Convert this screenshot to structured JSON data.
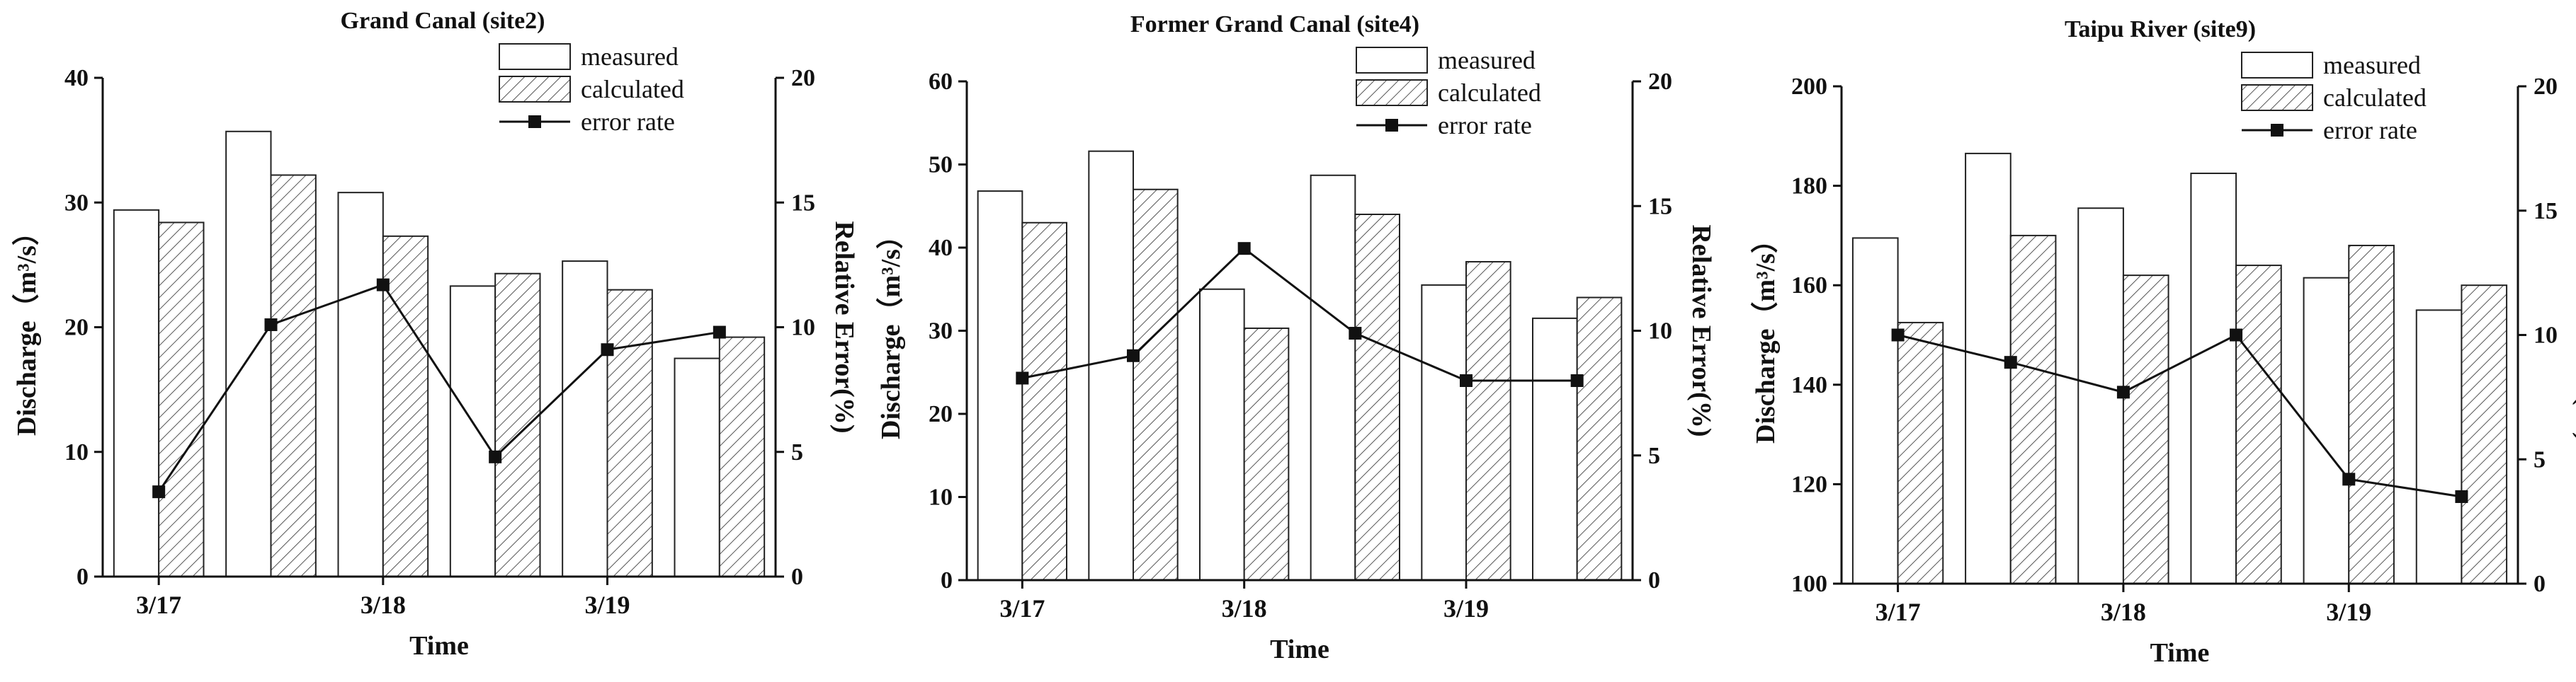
{
  "chart_data": [
    {
      "type": "bar",
      "title": "Grand Canal (site2)",
      "xlabel": "Time",
      "ylabel": "Discharge（m³/s）",
      "y2label": "Relative Error(%)",
      "ylim": [
        0,
        40
      ],
      "y2lim": [
        0,
        20
      ],
      "yticks": [
        "0",
        "10",
        "20",
        "30",
        "40"
      ],
      "y2ticks": [
        "0",
        "5",
        "10",
        "15",
        "20"
      ],
      "xticks": [
        "3/17",
        "3/18",
        "3/19"
      ],
      "legend": {
        "position": "top-right",
        "entries": [
          "measured",
          "calculated",
          "error rate"
        ]
      },
      "categories": [
        "1",
        "2",
        "3",
        "4",
        "5",
        "6"
      ],
      "series": [
        {
          "name": "measured",
          "values": [
            29.4,
            35.7,
            30.8,
            23.3,
            25.3,
            17.5
          ]
        },
        {
          "name": "calculated",
          "values": [
            28.4,
            32.2,
            27.3,
            24.3,
            23.0,
            19.2
          ]
        },
        {
          "name": "error rate",
          "values": [
            3.4,
            10.1,
            11.7,
            4.8,
            9.1,
            9.8
          ]
        }
      ]
    },
    {
      "type": "bar",
      "title": "Former Grand Canal (site4)",
      "xlabel": "Time",
      "ylabel": "Discharge（m³/s）",
      "y2label": "Relative Error(%)",
      "ylim": [
        0,
        60
      ],
      "y2lim": [
        0,
        20
      ],
      "yticks": [
        "0",
        "10",
        "20",
        "30",
        "40",
        "50",
        "60"
      ],
      "y2ticks": [
        "0",
        "5",
        "10",
        "15",
        "20"
      ],
      "xticks": [
        "3/17",
        "3/18",
        "3/19"
      ],
      "legend": {
        "position": "top-right",
        "entries": [
          "measured",
          "calculated",
          "error rate"
        ]
      },
      "categories": [
        "1",
        "2",
        "3",
        "4",
        "5",
        "6"
      ],
      "series": [
        {
          "name": "measured",
          "values": [
            46.8,
            51.6,
            35.0,
            48.7,
            35.5,
            31.5
          ]
        },
        {
          "name": "calculated",
          "values": [
            43.0,
            47.0,
            30.3,
            44.0,
            38.3,
            34.0
          ]
        },
        {
          "name": "error rate",
          "values": [
            8.1,
            9.0,
            13.3,
            9.9,
            8.0,
            8.0
          ]
        }
      ]
    },
    {
      "type": "bar",
      "title": "Taipu River (site9)",
      "xlabel": "Time",
      "ylabel": "Discharge（m³/s）",
      "y2label": "Relative Error(%)",
      "ylim": [
        100,
        200
      ],
      "y2lim": [
        0,
        20
      ],
      "yticks": [
        "100",
        "120",
        "140",
        "160",
        "180",
        "200"
      ],
      "y2ticks": [
        "0",
        "5",
        "10",
        "15",
        "20"
      ],
      "xticks": [
        "3/17",
        "3/18",
        "3/19"
      ],
      "legend": {
        "position": "top-right",
        "entries": [
          "measured",
          "calculated",
          "error rate"
        ]
      },
      "categories": [
        "1",
        "2",
        "3",
        "4",
        "5",
        "6"
      ],
      "series": [
        {
          "name": "measured",
          "values": [
            169.5,
            186.5,
            175.5,
            182.5,
            161.5,
            155.0
          ]
        },
        {
          "name": "calculated",
          "values": [
            152.5,
            170.0,
            162.0,
            164.0,
            168.0,
            160.0
          ]
        },
        {
          "name": "error rate",
          "values": [
            10.0,
            8.9,
            7.7,
            10.0,
            4.2,
            3.5
          ]
        }
      ]
    }
  ]
}
